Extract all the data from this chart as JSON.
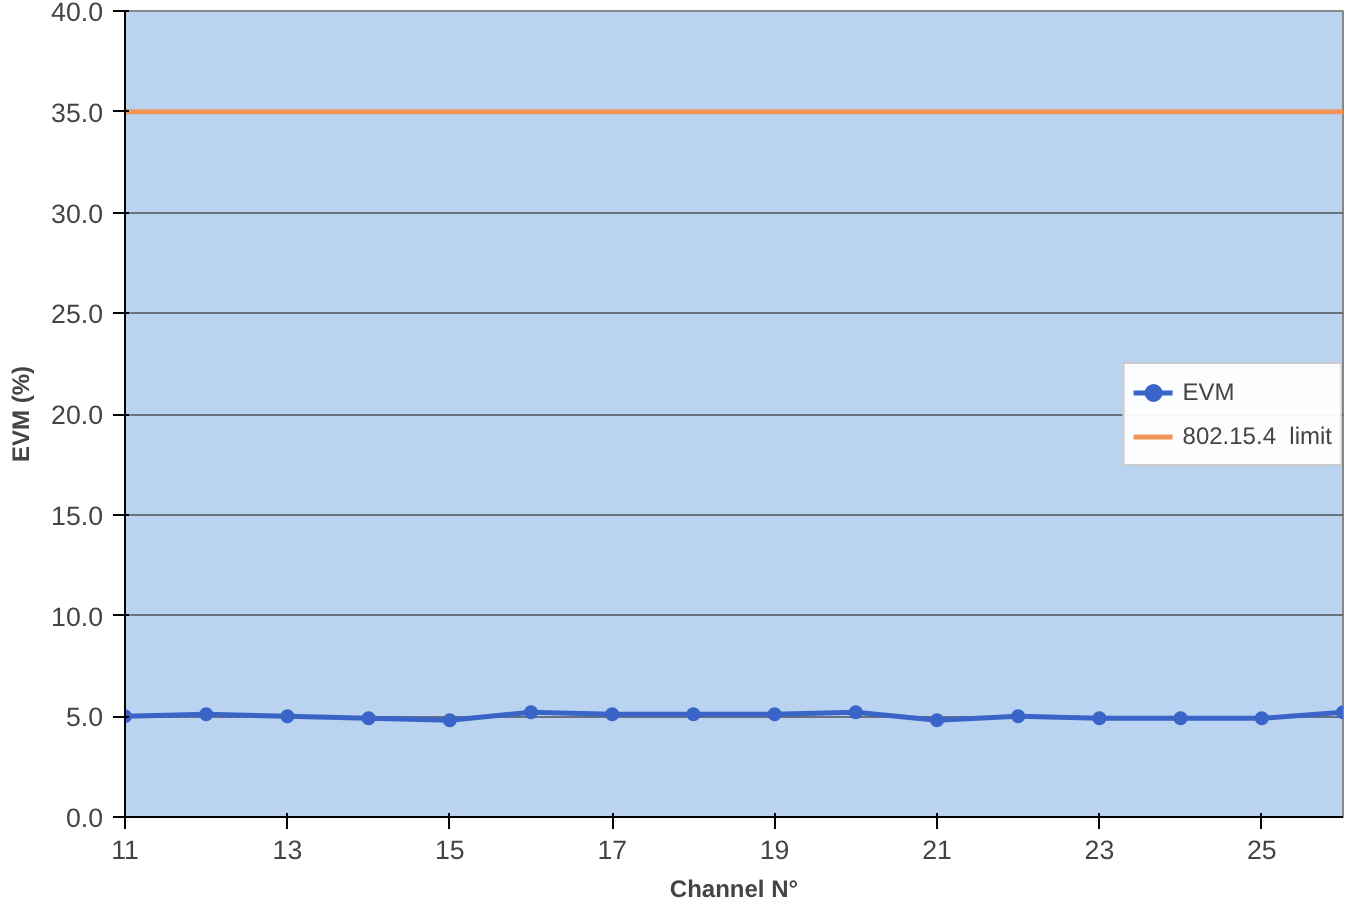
{
  "chart_data": {
    "type": "line",
    "xlabel": "Channel N°",
    "ylabel": "EVM (%)",
    "x": [
      11,
      12,
      13,
      14,
      15,
      16,
      17,
      18,
      19,
      20,
      21,
      22,
      23,
      24,
      25,
      26
    ],
    "series": [
      {
        "name": "EVM",
        "color": "#3a64c8",
        "marker": "circle",
        "values": [
          5.0,
          5.1,
          5.0,
          4.9,
          4.8,
          5.2,
          5.1,
          5.1,
          5.1,
          5.2,
          4.8,
          5.0,
          4.9,
          4.9,
          4.9,
          5.2
        ]
      },
      {
        "name": "802.15.4  limit",
        "color": "#f0965a",
        "marker": "none",
        "values": [
          35,
          35,
          35,
          35,
          35,
          35,
          35,
          35,
          35,
          35,
          35,
          35,
          35,
          35,
          35,
          35
        ]
      }
    ],
    "xlim": [
      11,
      26
    ],
    "xticks": [
      11,
      13,
      15,
      17,
      19,
      21,
      23,
      25
    ],
    "ylim": [
      0,
      40
    ],
    "yticks": [
      {
        "value": 0,
        "label": "0.0"
      },
      {
        "value": 5,
        "label": "5.0"
      },
      {
        "value": 10,
        "label": "10.0"
      },
      {
        "value": 15,
        "label": "15.0"
      },
      {
        "value": 20,
        "label": "20.0"
      },
      {
        "value": 25,
        "label": "25.0"
      },
      {
        "value": 30,
        "label": "30.0"
      },
      {
        "value": 35,
        "label": "35.0"
      },
      {
        "value": 40,
        "label": "40.0"
      }
    ],
    "grid": "y",
    "legend": "right"
  }
}
